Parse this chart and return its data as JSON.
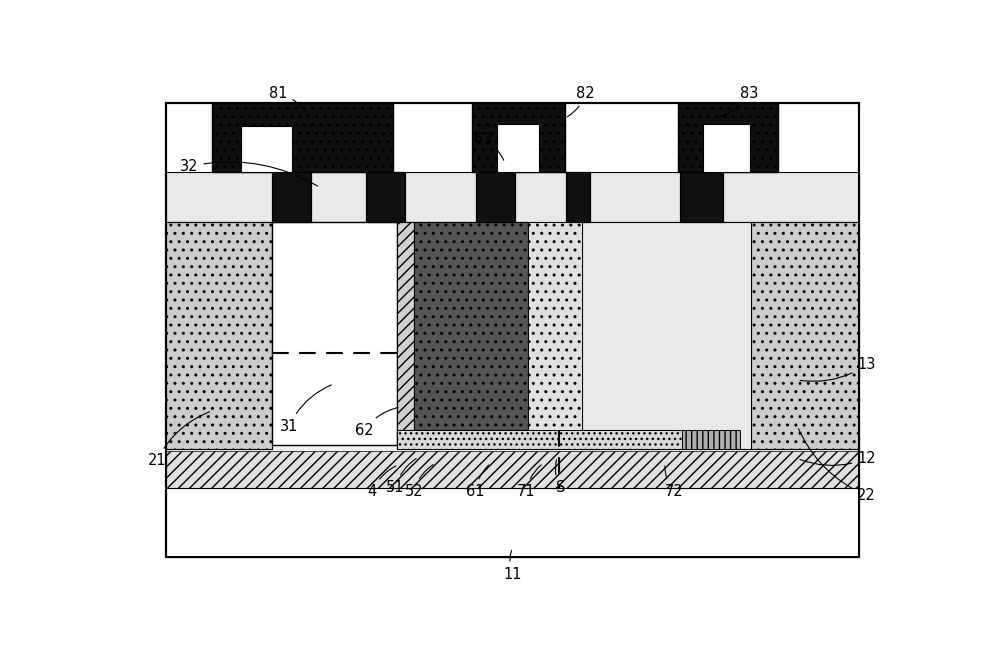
{
  "fig_width": 10.0,
  "fig_height": 6.64,
  "dpi": 100,
  "bg_color": "#ffffff",
  "label_fontsize": 10.5
}
